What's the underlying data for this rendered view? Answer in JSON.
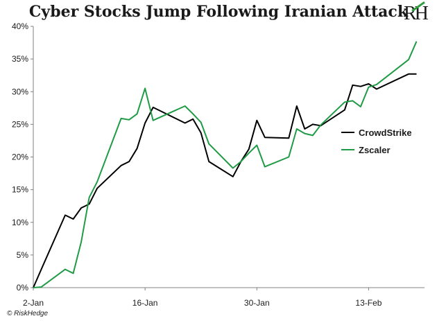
{
  "title": "Cyber Stocks Jump Following Iranian Attack",
  "logo_text": "RH",
  "source": "© RiskHedge",
  "colors": {
    "crowdstrike": "#000000",
    "zscaler": "#1f9a45",
    "axis": "#808080",
    "text": "#1a1a1a"
  },
  "chart_data": {
    "type": "line",
    "title": "Cyber Stocks Jump Following Iranian Attack",
    "xlabel": "",
    "ylabel": "",
    "ylim": [
      0,
      40
    ],
    "y_ticks": [
      "0%",
      "5%",
      "10%",
      "15%",
      "20%",
      "25%",
      "30%",
      "35%",
      "40%"
    ],
    "x_ticks": [
      {
        "label": "2-Jan",
        "date": "2020-01-02"
      },
      {
        "label": "16-Jan",
        "date": "2020-01-16"
      },
      {
        "label": "30-Jan",
        "date": "2020-01-30"
      },
      {
        "label": "13-Feb",
        "date": "2020-02-13"
      }
    ],
    "grid": false,
    "legend_position": "right",
    "series": [
      {
        "name": "CrowdStrike",
        "points": [
          [
            "2020-01-02",
            0
          ],
          [
            "2020-01-03",
            2.8
          ],
          [
            "2020-01-06",
            11.1
          ],
          [
            "2020-01-07",
            10.5
          ],
          [
            "2020-01-08",
            12.2
          ],
          [
            "2020-01-09",
            12.8
          ],
          [
            "2020-01-10",
            15.2
          ],
          [
            "2020-01-13",
            18.7
          ],
          [
            "2020-01-14",
            19.3
          ],
          [
            "2020-01-15",
            21.3
          ],
          [
            "2020-01-16",
            25.2
          ],
          [
            "2020-01-17",
            27.6
          ],
          [
            "2020-01-21",
            25.2
          ],
          [
            "2020-01-22",
            25.8
          ],
          [
            "2020-01-23",
            23.7
          ],
          [
            "2020-01-24",
            19.3
          ],
          [
            "2020-01-27",
            17.0
          ],
          [
            "2020-01-28",
            19.3
          ],
          [
            "2020-01-29",
            21.2
          ],
          [
            "2020-01-30",
            25.6
          ],
          [
            "2020-01-31",
            23.0
          ],
          [
            "2020-02-03",
            22.9
          ],
          [
            "2020-02-04",
            27.8
          ],
          [
            "2020-02-05",
            24.3
          ],
          [
            "2020-02-06",
            25.0
          ],
          [
            "2020-02-07",
            24.8
          ],
          [
            "2020-02-10",
            27.2
          ],
          [
            "2020-02-11",
            31.0
          ],
          [
            "2020-02-12",
            30.8
          ],
          [
            "2020-02-13",
            31.2
          ],
          [
            "2020-02-14",
            30.4
          ],
          [
            "2020-02-18",
            32.7
          ],
          [
            "2020-02-19",
            32.7
          ]
        ]
      },
      {
        "name": "Zscaler",
        "points": [
          [
            "2020-01-02",
            0
          ],
          [
            "2020-01-03",
            0.1
          ],
          [
            "2020-01-06",
            2.8
          ],
          [
            "2020-01-07",
            2.2
          ],
          [
            "2020-01-08",
            7.0
          ],
          [
            "2020-01-09",
            13.8
          ],
          [
            "2020-01-10",
            16.2
          ],
          [
            "2020-01-13",
            25.9
          ],
          [
            "2020-01-14",
            25.7
          ],
          [
            "2020-01-15",
            26.6
          ],
          [
            "2020-01-16",
            30.5
          ],
          [
            "2020-01-17",
            25.6
          ],
          [
            "2020-01-21",
            27.8
          ],
          [
            "2020-01-22",
            26.6
          ],
          [
            "2020-01-23",
            25.3
          ],
          [
            "2020-01-24",
            22.0
          ],
          [
            "2020-01-27",
            18.3
          ],
          [
            "2020-01-28",
            19.3
          ],
          [
            "2020-01-29",
            20.6
          ],
          [
            "2020-01-30",
            21.8
          ],
          [
            "2020-01-31",
            18.5
          ],
          [
            "2020-02-03",
            20.0
          ],
          [
            "2020-02-04",
            24.3
          ],
          [
            "2020-02-05",
            23.6
          ],
          [
            "2020-02-06",
            23.3
          ],
          [
            "2020-02-07",
            24.9
          ],
          [
            "2020-02-10",
            28.4
          ],
          [
            "2020-02-11",
            28.6
          ],
          [
            "2020-02-12",
            27.7
          ],
          [
            "2020-02-13",
            30.7
          ],
          [
            "2020-02-14",
            31.1
          ],
          [
            "2020-02-18",
            34.9
          ],
          [
            "2020-02-19",
            37.7
          ]
        ]
      }
    ]
  }
}
